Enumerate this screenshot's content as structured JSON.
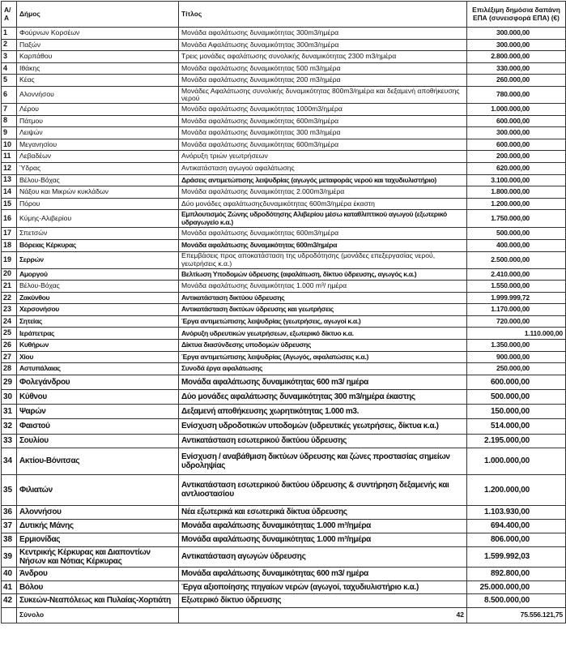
{
  "headers": {
    "n": "Α/Α",
    "dimos": "Δήμος",
    "title": "Τίτλος",
    "amount": "Επιλέξιμη δημόσια δαπάνη ΕΠΑ (συνεισφορά ΕΠΑ) (€)"
  },
  "rows": [
    {
      "n": "1",
      "dimos": "Φούρνων Κορσέων",
      "title": "Μονάδα αφαλάτωσης δυναμικότητας 300m3/ημέρα",
      "amount": "300.000,00"
    },
    {
      "n": "2",
      "dimos": "Παξών",
      "title": "Μονάδα Αφαλάτωσης δυναμικότητας 300m3/ημέρα",
      "amount": "300.000,00"
    },
    {
      "n": "3",
      "dimos": "Καρπάθου",
      "title": "Τρεις μονάδες αφαλάτωσης συνολικής δυναμικότητας 2300 m3/ημέρα",
      "amount": "2.800.000,00"
    },
    {
      "n": "4",
      "dimos": "Ιθάκης",
      "title": "Μονάδα αφαλάτωσης δυναμικότητας 500 m3/ημέρα",
      "amount": "330.000,00"
    },
    {
      "n": "5",
      "dimos": "Κέας",
      "title": "Μονάδα αφαλάτωσης δυναμικότητας 200 m3/ημέρα",
      "amount": "260.000,00"
    },
    {
      "n": "6",
      "dimos": "Αλοννήσου",
      "title": "Μονάδες Αφαλάτωσης συνολικής δυναμικότητας  800m3/ημέρα και δεξαμενή αποθήκευσης νερού",
      "amount": "780.000,00"
    },
    {
      "n": "7",
      "dimos": "Λέρου",
      "title": "Μονάδα αφαλάτωσης δυναμικότητας 1000m3/ημέρα",
      "amount": "1.000.000,00"
    },
    {
      "n": "8",
      "dimos": "Πάτμου",
      "title": "Μονάδα αφαλάτωσης δυναμικότητας 600m3/ημέρα",
      "amount": "600.000,00"
    },
    {
      "n": "9",
      "dimos": "Λειψών",
      "title": "Μονάδα αφαλάτωσης δυναμικότητας 300 m3/ημέρα",
      "amount": "300.000,00"
    },
    {
      "n": "10",
      "dimos": "Μεγανησίου",
      "title": "Μονάδα αφαλάτωσης δυναμικότητας 600m3/ημέρα",
      "amount": "600.000,00"
    },
    {
      "n": "11",
      "dimos": "Λεβαδέων",
      "title": "Ανόρυξη τριών γεωτρήσεων",
      "amount": "200.000,00"
    },
    {
      "n": "12",
      "dimos": "Ύδρας",
      "title": "Αντικατάσταση αγωγού αφαλάτωσης",
      "amount": "620.000,00"
    },
    {
      "n": "13",
      "dimos": "Βέλου-Βόχας",
      "title": "Δράσεις αντιμετώπισης λειψυδρίας (αγωγός μεταφοράς νερού και ταχυδιυλιστήριο)",
      "amount": "3.100.000,00"
    },
    {
      "n": "14",
      "dimos": "Νάξου και Μικρών κυκλάδων",
      "title": "Μονάδα αφαλάτωσης δυναμικότητας 2.000m3/ημέρα",
      "amount": "1.800.000,00"
    },
    {
      "n": "15",
      "dimos": "Πόρου",
      "title": "Δύο μονάδες αφαλάτωσηςδυναμικότητας 600m3/ημέρα έκαστη",
      "amount": "1.200.000,00"
    },
    {
      "n": "16",
      "dimos": "Κύμης-Αλιβερίου",
      "title": "Εμπλουτισμός Ζώνης υδροδότησης Αλιβερίου μέσω καταθλιπτικού αγωγού (εξωτερικό υδραγωγείο κ.α.)",
      "amount": "1.750.000,00"
    },
    {
      "n": "17",
      "dimos": "Σπετσών",
      "title": "Μονάδα αφαλάτωσης δυναμικότητας 600m3/ημέρα",
      "amount": "500.000,00"
    },
    {
      "n": "18",
      "dimos": "Βόρειας Κέρκυρας",
      "title": "Μονάδα αφαλάτωσης δυναμικότητας 600m3/ημέρα",
      "amount": "400.000,00"
    },
    {
      "n": "19",
      "dimos": "Σερρών",
      "title": "Επεμβάσεις προς αποκατάσταση της υδροδότησης (μονάδες επεξεργασίας νερού, γεωτρήσεις κ.α.)",
      "amount": "2.500.000,00"
    },
    {
      "n": "20",
      "dimos": "Αμοργού",
      "title": "Βελτίωση Υποδομών ύδρευσης (αφαλάτωση, δίκτυο ύδρευσης, αγωγός κ.α.)",
      "amount": "2.410.000,00"
    },
    {
      "n": "21",
      "dimos": "Βέλου-Βόχας",
      "title": "Μονάδα αφαλάτωσης δυναμικότητας 1.000 m³/ ημέρα",
      "amount": "1.550.000,00"
    },
    {
      "n": "22",
      "dimos": "Ζακύνθου",
      "title": "Αντικατάσταση δικτύου ύδρευσης",
      "amount": "1.999.999,72"
    },
    {
      "n": "23",
      "dimos": "Χερσονήσου",
      "title": "Αντικατάσταση δικτύων ύδρευσης και γεωτρήσεις",
      "amount": "1.170.000,00"
    },
    {
      "n": "24",
      "dimos": "Σητείας",
      "title": "Έργα αντιμετώπισης λειψυδρίας (γεωτρήσεις, αγωγοί κ.α.)",
      "amount": "720.000,00"
    },
    {
      "n": "25",
      "dimos": "Ιεράπετρας",
      "title": "Ανόρυξη υδρευτικών γεωτρήσεων, εξωτερικό δίκτυο κ.α.",
      "amount": "1.110.000,00"
    },
    {
      "n": "26",
      "dimos": "Κυθήρων",
      "title": "Δίκτυα διασύνδεσης υποδομών ύδρευσης",
      "amount": "1.350.000,00"
    },
    {
      "n": "27",
      "dimos": "Χίου",
      "title": "Έργα αντιμετώπισης λειψυδρίας (Αγωγός, αφαλατώσεις κ.α.)",
      "amount": "900.000,00"
    },
    {
      "n": "28",
      "dimos": "Αστυπάλαιας",
      "title": "Συνοδά έργα αφαλάτωσης",
      "amount": "250.000,00"
    },
    {
      "n": "29",
      "dimos": "Φολεγάνδρου",
      "title": "Μονάδα αφαλάτωσης δυναμικότητας 600 m3/ ημέρα",
      "amount": "600.000,00"
    },
    {
      "n": "30",
      "dimos": "Κύθνου",
      "title": "Δύο μονάδες αφαλάτωσης  δυναμικότητας 300 m3/ημέρα έκαστης",
      "amount": "500.000,00"
    },
    {
      "n": "31",
      "dimos": "Ψαρών",
      "title": "Δεξαμενή αποθήκευσης χωρητικότητας 1.000 m3.",
      "amount": "150.000,00"
    },
    {
      "n": "32",
      "dimos": "Φαιστού",
      "title": "Ενίσχυση υδροδοτικών υποδομών (υδρευτικές γεωτρήσεις, δίκτυα κ.α.)",
      "amount": "514.000,00"
    },
    {
      "n": "33",
      "dimos": "Σουλίου",
      "title": "Αντικατάσταση εσωτερικού δικτύου ύδρευσης",
      "amount": "2.195.000,00"
    },
    {
      "n": "34",
      "dimos": "Ακτίου-Βόνιτσας",
      "title": "Ενίσχυση / αναβάθμιση δικτύων ύδρευσης και ζώνες προστασίας σημείων υδροληψίας",
      "amount": "1.000.000,00"
    },
    {
      "n": "35",
      "dimos": "Φιλιατών",
      "title": "Αντικατάσταση  εσωτερικού δικτύου ύδρευσης  & συντήρηση δεξαμενής και αντλιοστασίου",
      "amount": "1.200.000,00"
    },
    {
      "n": "36",
      "dimos": "Αλοννήσου",
      "title": "Νέα εξωτερικά και εσωτερικά δίκτυα ύδρευσης",
      "amount": "1.103.930,00"
    },
    {
      "n": "37",
      "dimos": "Δυτικής Μάνης",
      "title": "Μονάδα αφαλάτωσης δυναμικότητας 1.000 m³/ημέρα",
      "amount": "694.400,00"
    },
    {
      "n": "38",
      "dimos": "Ερμιονίδας",
      "title": "Μονάδα αφαλάτωσης δυναμικότητας 1.000 m³/ημέρα",
      "amount": "806.000,00"
    },
    {
      "n": "39",
      "dimos": "Κεντρικής Κέρκυρας και Διαποντίων Νήσων και Νότιας Κέρκυρας",
      "title": "Αντικατάσταση αγωγών ύδρευσης",
      "amount": "1.599.992,03"
    },
    {
      "n": "40",
      "dimos": "Άνδρου",
      "title": "Μονάδα αφαλάτωσης δυναμικότητας 600 m3/ ημέρα",
      "amount": "892.800,00"
    },
    {
      "n": "41",
      "dimos": "Βόλου",
      "title": "Έργα αξιοποίησης πηγαίων νερών (αγωγοί, ταχυδιυλιστήριο κ.α.)",
      "amount": "25.000.000,00"
    },
    {
      "n": "42",
      "dimos": "Συκεών-Νεαπόλεως και Πυλαίας-Χορτιάτη",
      "title": "Εξωτερικό δίκτυο ύδρευσης",
      "amount": "8.500.000,00"
    }
  ],
  "total": {
    "label": "Σύνολο",
    "count": "42",
    "amount": "75.556.121,75"
  }
}
